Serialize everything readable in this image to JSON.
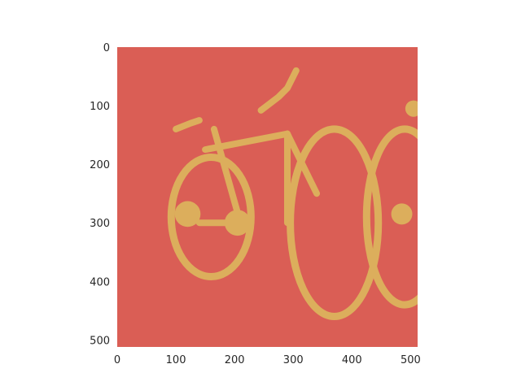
{
  "chart_data": {
    "type": "heatmap",
    "title": "",
    "xlabel": "",
    "ylabel": "",
    "xlim": [
      0,
      512
    ],
    "ylim": [
      512,
      0
    ],
    "grid": false,
    "legend": "none",
    "xticks": [
      0,
      100,
      200,
      300,
      400,
      500
    ],
    "yticks": [
      0,
      100,
      200,
      300,
      400,
      500
    ],
    "xtick_labels": [
      "0",
      "100",
      "200",
      "300",
      "400",
      "500"
    ],
    "ytick_labels": [
      "0",
      "100",
      "200",
      "300",
      "400",
      "500"
    ],
    "classes": [
      {
        "value": 0,
        "label": "background",
        "color": "#da5e55"
      },
      {
        "value": 1,
        "label": "bicycle",
        "color": "#dcae5c"
      }
    ],
    "mask_regions": [
      {
        "name": "rear-wheel",
        "shape": "ellipse",
        "center": [
          160,
          290
        ],
        "radii": [
          68,
          102
        ],
        "ring": true
      },
      {
        "name": "front-wheel",
        "shape": "ellipse",
        "center": [
          370,
          300
        ],
        "radii": [
          75,
          160
        ],
        "ring": true
      },
      {
        "name": "top-tube",
        "shape": "line",
        "points": [
          [
            150,
            175
          ],
          [
            290,
            148
          ]
        ]
      },
      {
        "name": "down-tube",
        "shape": "line",
        "points": [
          [
            290,
            148
          ],
          [
            290,
            300
          ]
        ]
      },
      {
        "name": "seat-tube",
        "shape": "line",
        "points": [
          [
            165,
            140
          ],
          [
            210,
            300
          ]
        ]
      },
      {
        "name": "chain-stay",
        "shape": "line",
        "points": [
          [
            140,
            300
          ],
          [
            210,
            300
          ]
        ]
      },
      {
        "name": "fork",
        "shape": "line",
        "points": [
          [
            290,
            148
          ],
          [
            340,
            250
          ]
        ]
      },
      {
        "name": "handlebar",
        "shape": "polyline",
        "points": [
          [
            245,
            108
          ],
          [
            275,
            85
          ],
          [
            290,
            70
          ],
          [
            300,
            50
          ],
          [
            305,
            40
          ]
        ]
      },
      {
        "name": "saddle",
        "shape": "polyline",
        "points": [
          [
            100,
            140
          ],
          [
            125,
            130
          ],
          [
            140,
            125
          ]
        ]
      },
      {
        "name": "crank-hub",
        "shape": "blob",
        "center": [
          205,
          300
        ],
        "radius": 22
      },
      {
        "name": "rear-hub-blob",
        "shape": "blob",
        "center": [
          120,
          285
        ],
        "radius": 22
      },
      {
        "name": "next-bike-wheel",
        "shape": "ellipse",
        "center": [
          490,
          290
        ],
        "radii": [
          65,
          150
        ],
        "ring": true
      },
      {
        "name": "next-bike-hub",
        "shape": "blob",
        "center": [
          485,
          285
        ],
        "radius": 18
      },
      {
        "name": "next-bike-top",
        "shape": "blob",
        "center": [
          505,
          105
        ],
        "radius": 14
      }
    ]
  }
}
